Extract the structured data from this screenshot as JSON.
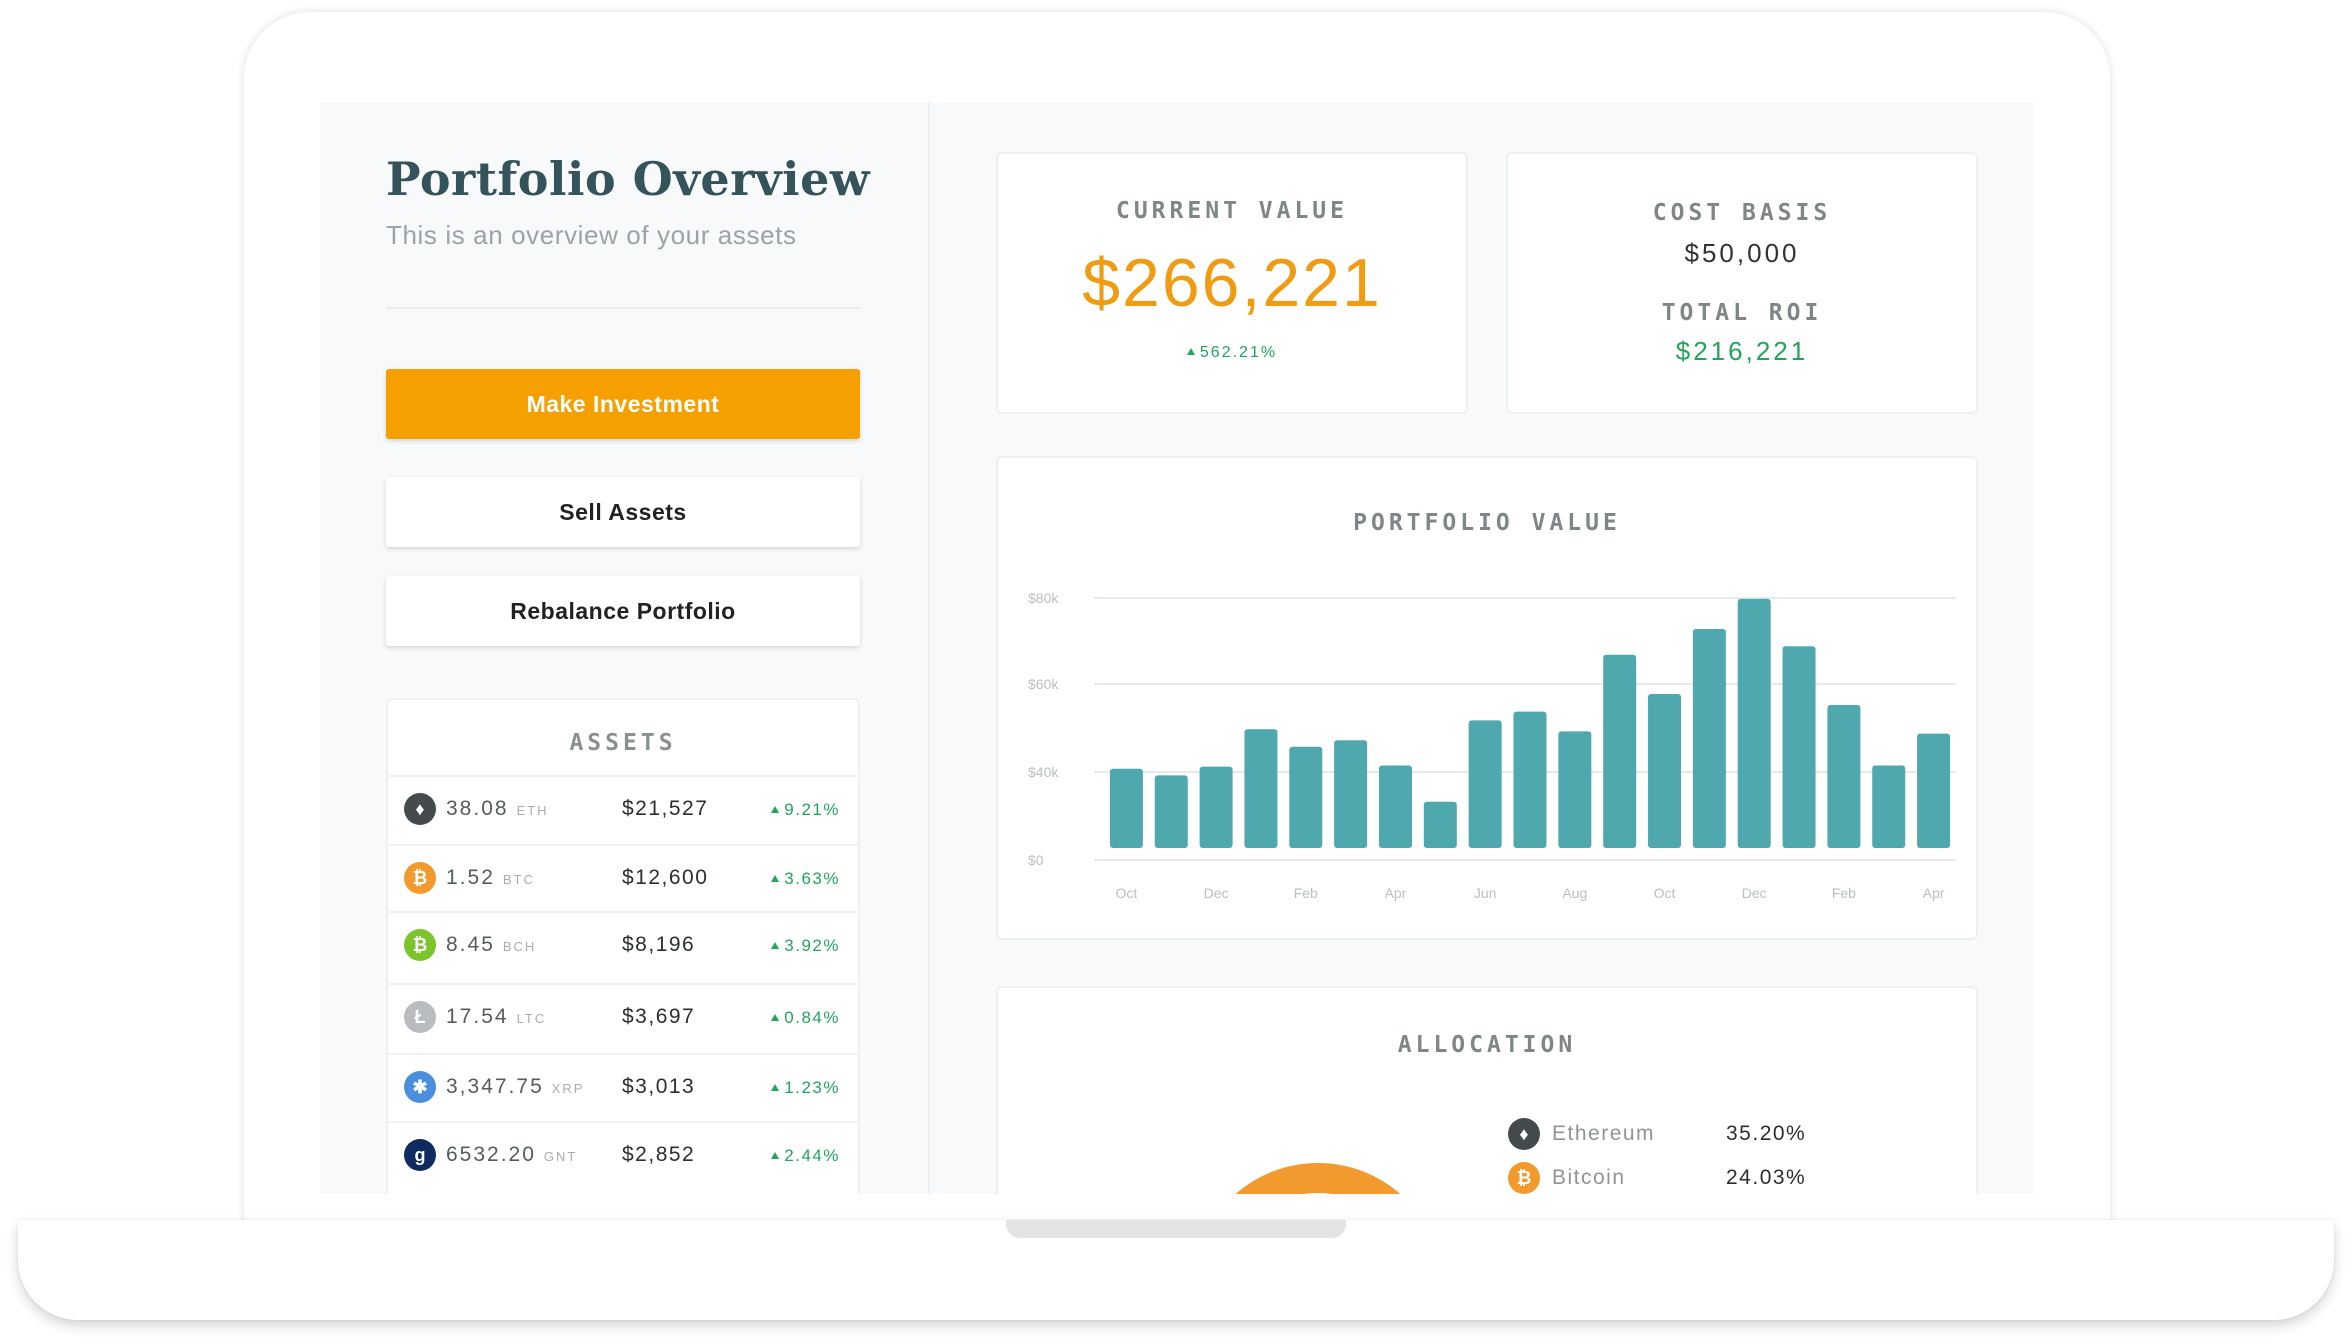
{
  "sidebar": {
    "title": "Portfolio Overview",
    "subtitle": "This is an overview of your assets",
    "buttons": {
      "make_investment": "Make Investment",
      "sell_assets": "Sell Assets",
      "rebalance": "Rebalance Portfolio"
    },
    "assets": {
      "title": "ASSETS",
      "items": [
        {
          "qty": "38.08",
          "symbol": "ETH",
          "value": "$21,527",
          "change": "9.21%",
          "icon": "ethereum-icon",
          "color": "#454a4d",
          "glyph": "♦"
        },
        {
          "qty": "1.52",
          "symbol": "BTC",
          "value": "$12,600",
          "change": "3.63%",
          "icon": "bitcoin-icon",
          "color": "#f39a2e",
          "glyph": "₿"
        },
        {
          "qty": "8.45",
          "symbol": "BCH",
          "value": "$8,196",
          "change": "3.92%",
          "icon": "bitcoin-cash-icon",
          "color": "#7cc42b",
          "glyph": "₿"
        },
        {
          "qty": "17.54",
          "symbol": "LTC",
          "value": "$3,697",
          "change": "0.84%",
          "icon": "litecoin-icon",
          "color": "#b9bcbe",
          "glyph": "Ł"
        },
        {
          "qty": "3,347.75",
          "symbol": "XRP",
          "value": "$3,013",
          "change": "1.23%",
          "icon": "ripple-icon",
          "color": "#4a8fde",
          "glyph": "✱"
        },
        {
          "qty": "6532.20",
          "symbol": "GNT",
          "value": "$2,852",
          "change": "2.44%",
          "icon": "golem-icon",
          "color": "#0f2b5f",
          "glyph": "g"
        }
      ]
    }
  },
  "current_value": {
    "label": "CURRENT VALUE",
    "value": "$266,221",
    "change": "562.21%"
  },
  "cost_basis": {
    "label": "COST BASIS",
    "value": "$50,000",
    "roi_label": "TOTAL ROI",
    "roi_value": "$216,221"
  },
  "chart": {
    "title": "PORTFOLIO VALUE"
  },
  "chart_data": {
    "type": "bar",
    "title": "PORTFOLIO VALUE",
    "xlabel": "",
    "ylabel": "",
    "ylim": [
      0,
      80000
    ],
    "yticks": [
      0,
      40000,
      60000,
      80000
    ],
    "ytick_labels": [
      "$0",
      "$40k",
      "$60k",
      "$80k"
    ],
    "xtick_labels": [
      "Oct",
      "Dec",
      "Feb",
      "Apr",
      "Jun",
      "Aug",
      "Oct",
      "Dec",
      "Feb",
      "Apr"
    ],
    "values": [
      36000,
      33000,
      37000,
      47000,
      43000,
      44500,
      37500,
      21000,
      49000,
      51000,
      46500,
      64000,
      55000,
      70000,
      77000,
      66000,
      52500,
      37500,
      46000
    ],
    "color": "#4ea8ad",
    "grid": true
  },
  "allocation": {
    "title": "ALLOCATION",
    "items": [
      {
        "name": "Ethereum",
        "pct": "35.20%",
        "icon": "ethereum-icon",
        "color": "#454a4d",
        "glyph": "♦"
      },
      {
        "name": "Bitcoin",
        "pct": "24.03%",
        "icon": "bitcoin-icon",
        "color": "#f39a2e",
        "glyph": "₿"
      }
    ]
  }
}
